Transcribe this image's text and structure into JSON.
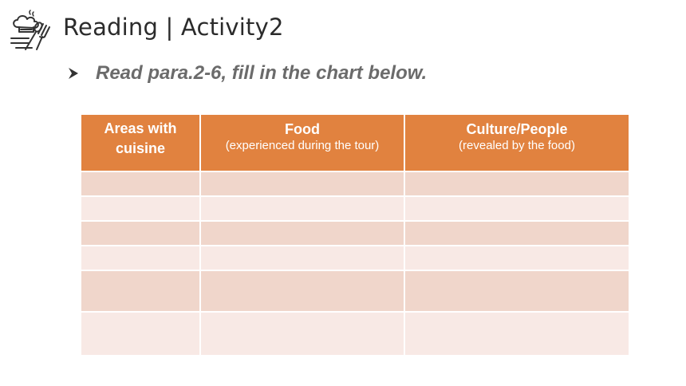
{
  "header": {
    "title": "Reading | Activity2",
    "icon": "chef-hat-utensils-icon"
  },
  "instruction": {
    "text": "Read para.2-6, fill in the chart below.",
    "bullet_icon": "arrow-bullet-icon"
  },
  "table": {
    "columns": [
      {
        "title": "Areas with cuisine",
        "subtitle": ""
      },
      {
        "title": "Food",
        "subtitle": "(experienced during the tour)"
      },
      {
        "title": "Culture/People",
        "subtitle": "(revealed by the food)"
      }
    ],
    "rows": [
      [
        "",
        "",
        ""
      ],
      [
        "",
        "",
        ""
      ],
      [
        "",
        "",
        ""
      ],
      [
        "",
        "",
        ""
      ],
      [
        "",
        "",
        ""
      ],
      [
        "",
        "",
        ""
      ]
    ]
  },
  "colors": {
    "header_bg": "#e1823f",
    "row_dark": "#f0d6cb",
    "row_light": "#f8e9e5",
    "instruction_text": "#6b6b6b"
  }
}
